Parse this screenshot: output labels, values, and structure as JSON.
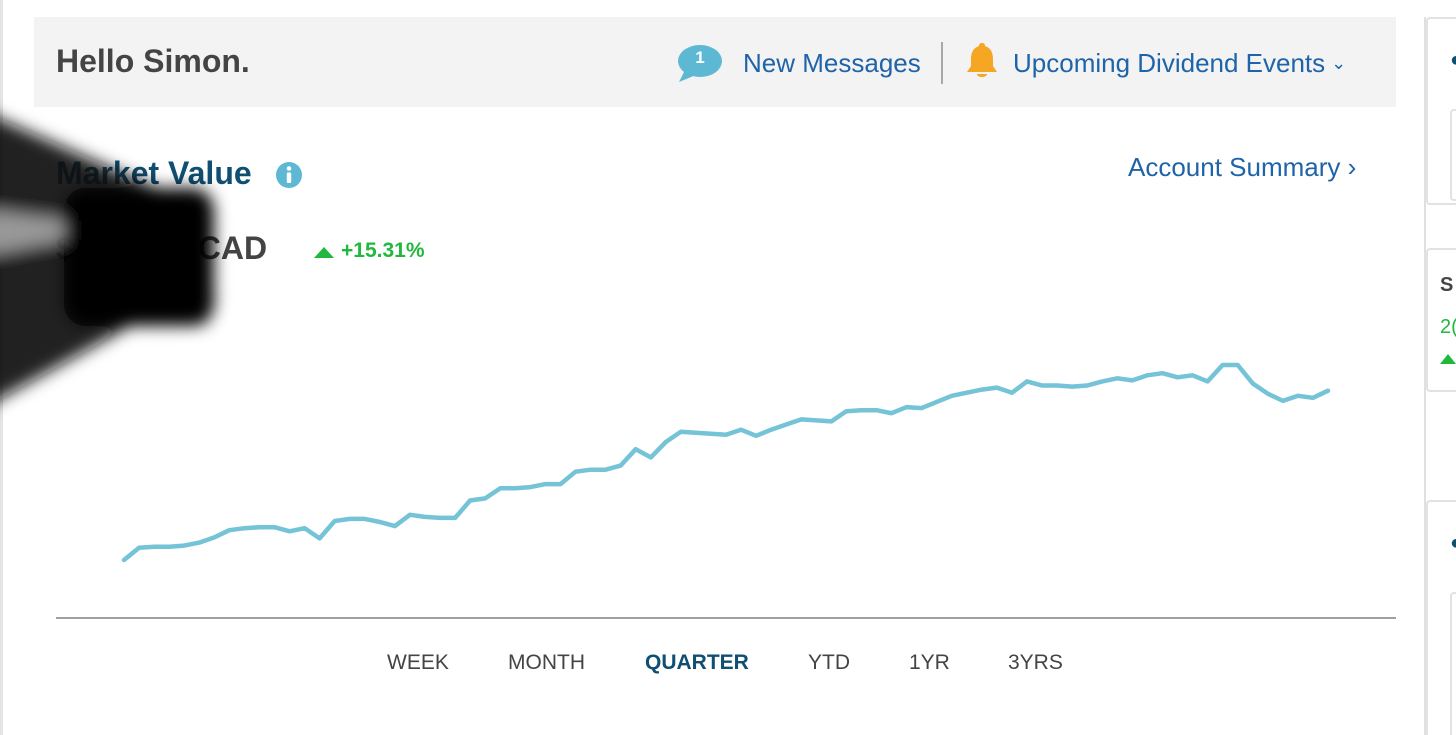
{
  "header": {
    "greeting": "Hello Simon.",
    "message_count": "1",
    "messages_label": "New Messages",
    "dividend_label": "Upcoming Dividend Events",
    "dividend_chevron": "⌄"
  },
  "market": {
    "title": "Market Value",
    "value_prefix": "$",
    "value_currency": "CAD",
    "change": "+15.31%",
    "account_summary_label": "Account Summary",
    "account_summary_chevron": "›"
  },
  "range_tabs": [
    "WEEK",
    "MONTH",
    "QUARTER",
    "YTD",
    "1YR",
    "3YRS"
  ],
  "active_range": "QUARTER",
  "side_panel": {
    "card2_letter": "S",
    "card2_value": "2("
  },
  "colors": {
    "accent_blue": "#1f63a8",
    "title_navy": "#0f4f72",
    "positive_green": "#21b83e",
    "chart_line": "#74c3d7",
    "bell_orange": "#f5a623",
    "message_bubble": "#5db8d4"
  },
  "icons": {
    "messages": "speech-bubble-icon",
    "dividends": "bell-icon",
    "info": "info-icon",
    "change": "triangle-up-icon"
  },
  "chart_data": {
    "type": "line",
    "title": "",
    "xlabel": "",
    "ylabel": "",
    "x": [
      1,
      2,
      3,
      4,
      5,
      6,
      7,
      8,
      9,
      10,
      11,
      12,
      13,
      14,
      15,
      16,
      17,
      18,
      19,
      20,
      21,
      22,
      23,
      24,
      25,
      26,
      27,
      28,
      29,
      30,
      31,
      32,
      33,
      34,
      35,
      36,
      37,
      38,
      39,
      40,
      41,
      42,
      43,
      44,
      45,
      46,
      47,
      48,
      49,
      50,
      51,
      52,
      53,
      54,
      55,
      56,
      57,
      58,
      59,
      60,
      61,
      62,
      63,
      64,
      65,
      66,
      67,
      68,
      69,
      70,
      71,
      72,
      73,
      74,
      75,
      76,
      77,
      78,
      79,
      80,
      81
    ],
    "series": [
      {
        "values": [
          0,
          12,
          13,
          13,
          14,
          17,
          22,
          29,
          31,
          32,
          32,
          28,
          31,
          21,
          38,
          40,
          40,
          37,
          33,
          44,
          42,
          41,
          41,
          58,
          60,
          70,
          70,
          71,
          74,
          74,
          86,
          88,
          88,
          92,
          108,
          100,
          115,
          125,
          124,
          123,
          122,
          127,
          121,
          127,
          132,
          137,
          136,
          135,
          145,
          146,
          146,
          143,
          149,
          148,
          154,
          160,
          163,
          166,
          168,
          163,
          174,
          170,
          170,
          169,
          170,
          174,
          177,
          175,
          180,
          182,
          178,
          180,
          174,
          190,
          190,
          172,
          162,
          155,
          160,
          158,
          165
        ]
      }
    ]
  }
}
